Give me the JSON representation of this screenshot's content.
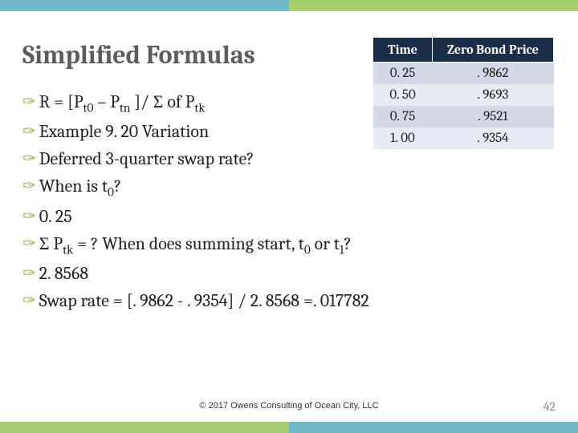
{
  "title": "Simplified Formulas",
  "table": {
    "headers": [
      "Time",
      "Zero Bond Price"
    ],
    "rows": [
      [
        "0. 25",
        ". 9862"
      ],
      [
        "0. 50",
        ". 9693"
      ],
      [
        "0. 75",
        ". 9521"
      ],
      [
        "1. 00",
        ". 9354"
      ]
    ],
    "header_bg": "#1a2e4a",
    "header_fg": "#ffffff",
    "row_odd_bg": "#d2d9e4",
    "row_even_bg": "#e8ecf2"
  },
  "bullets": [
    {
      "html": "R = [P<span class=\"sub\">t0</span> – P<span class=\"sub\">tn</span> ]/ Σ of P<span class=\"sub\">tk</span>"
    },
    {
      "html": "Example 9. 20 Variation"
    },
    {
      "html": "Deferred 3-quarter swap rate?"
    },
    {
      "html": "When is t<span class=\"sub\">0</span>?"
    },
    {
      "html": "0. 25"
    },
    {
      "html": "Σ P<span class=\"sub\">tk</span> = ?   When does summing start, t<span class=\"sub\">0</span> or t<span class=\"sub\">1</span>?"
    },
    {
      "html": "2. 8568"
    },
    {
      "html": "Swap rate = [. 9862 - . 9354] / 2. 8568 =. 017782"
    }
  ],
  "copyright": "© 2017 Owens Consulting of Ocean City, LLC",
  "page_number": "42",
  "colors": {
    "teal": "#6fb7c9",
    "green": "#a8cf6f",
    "bullet_marker": "#9ab85a",
    "title": "#5c5c5c"
  }
}
